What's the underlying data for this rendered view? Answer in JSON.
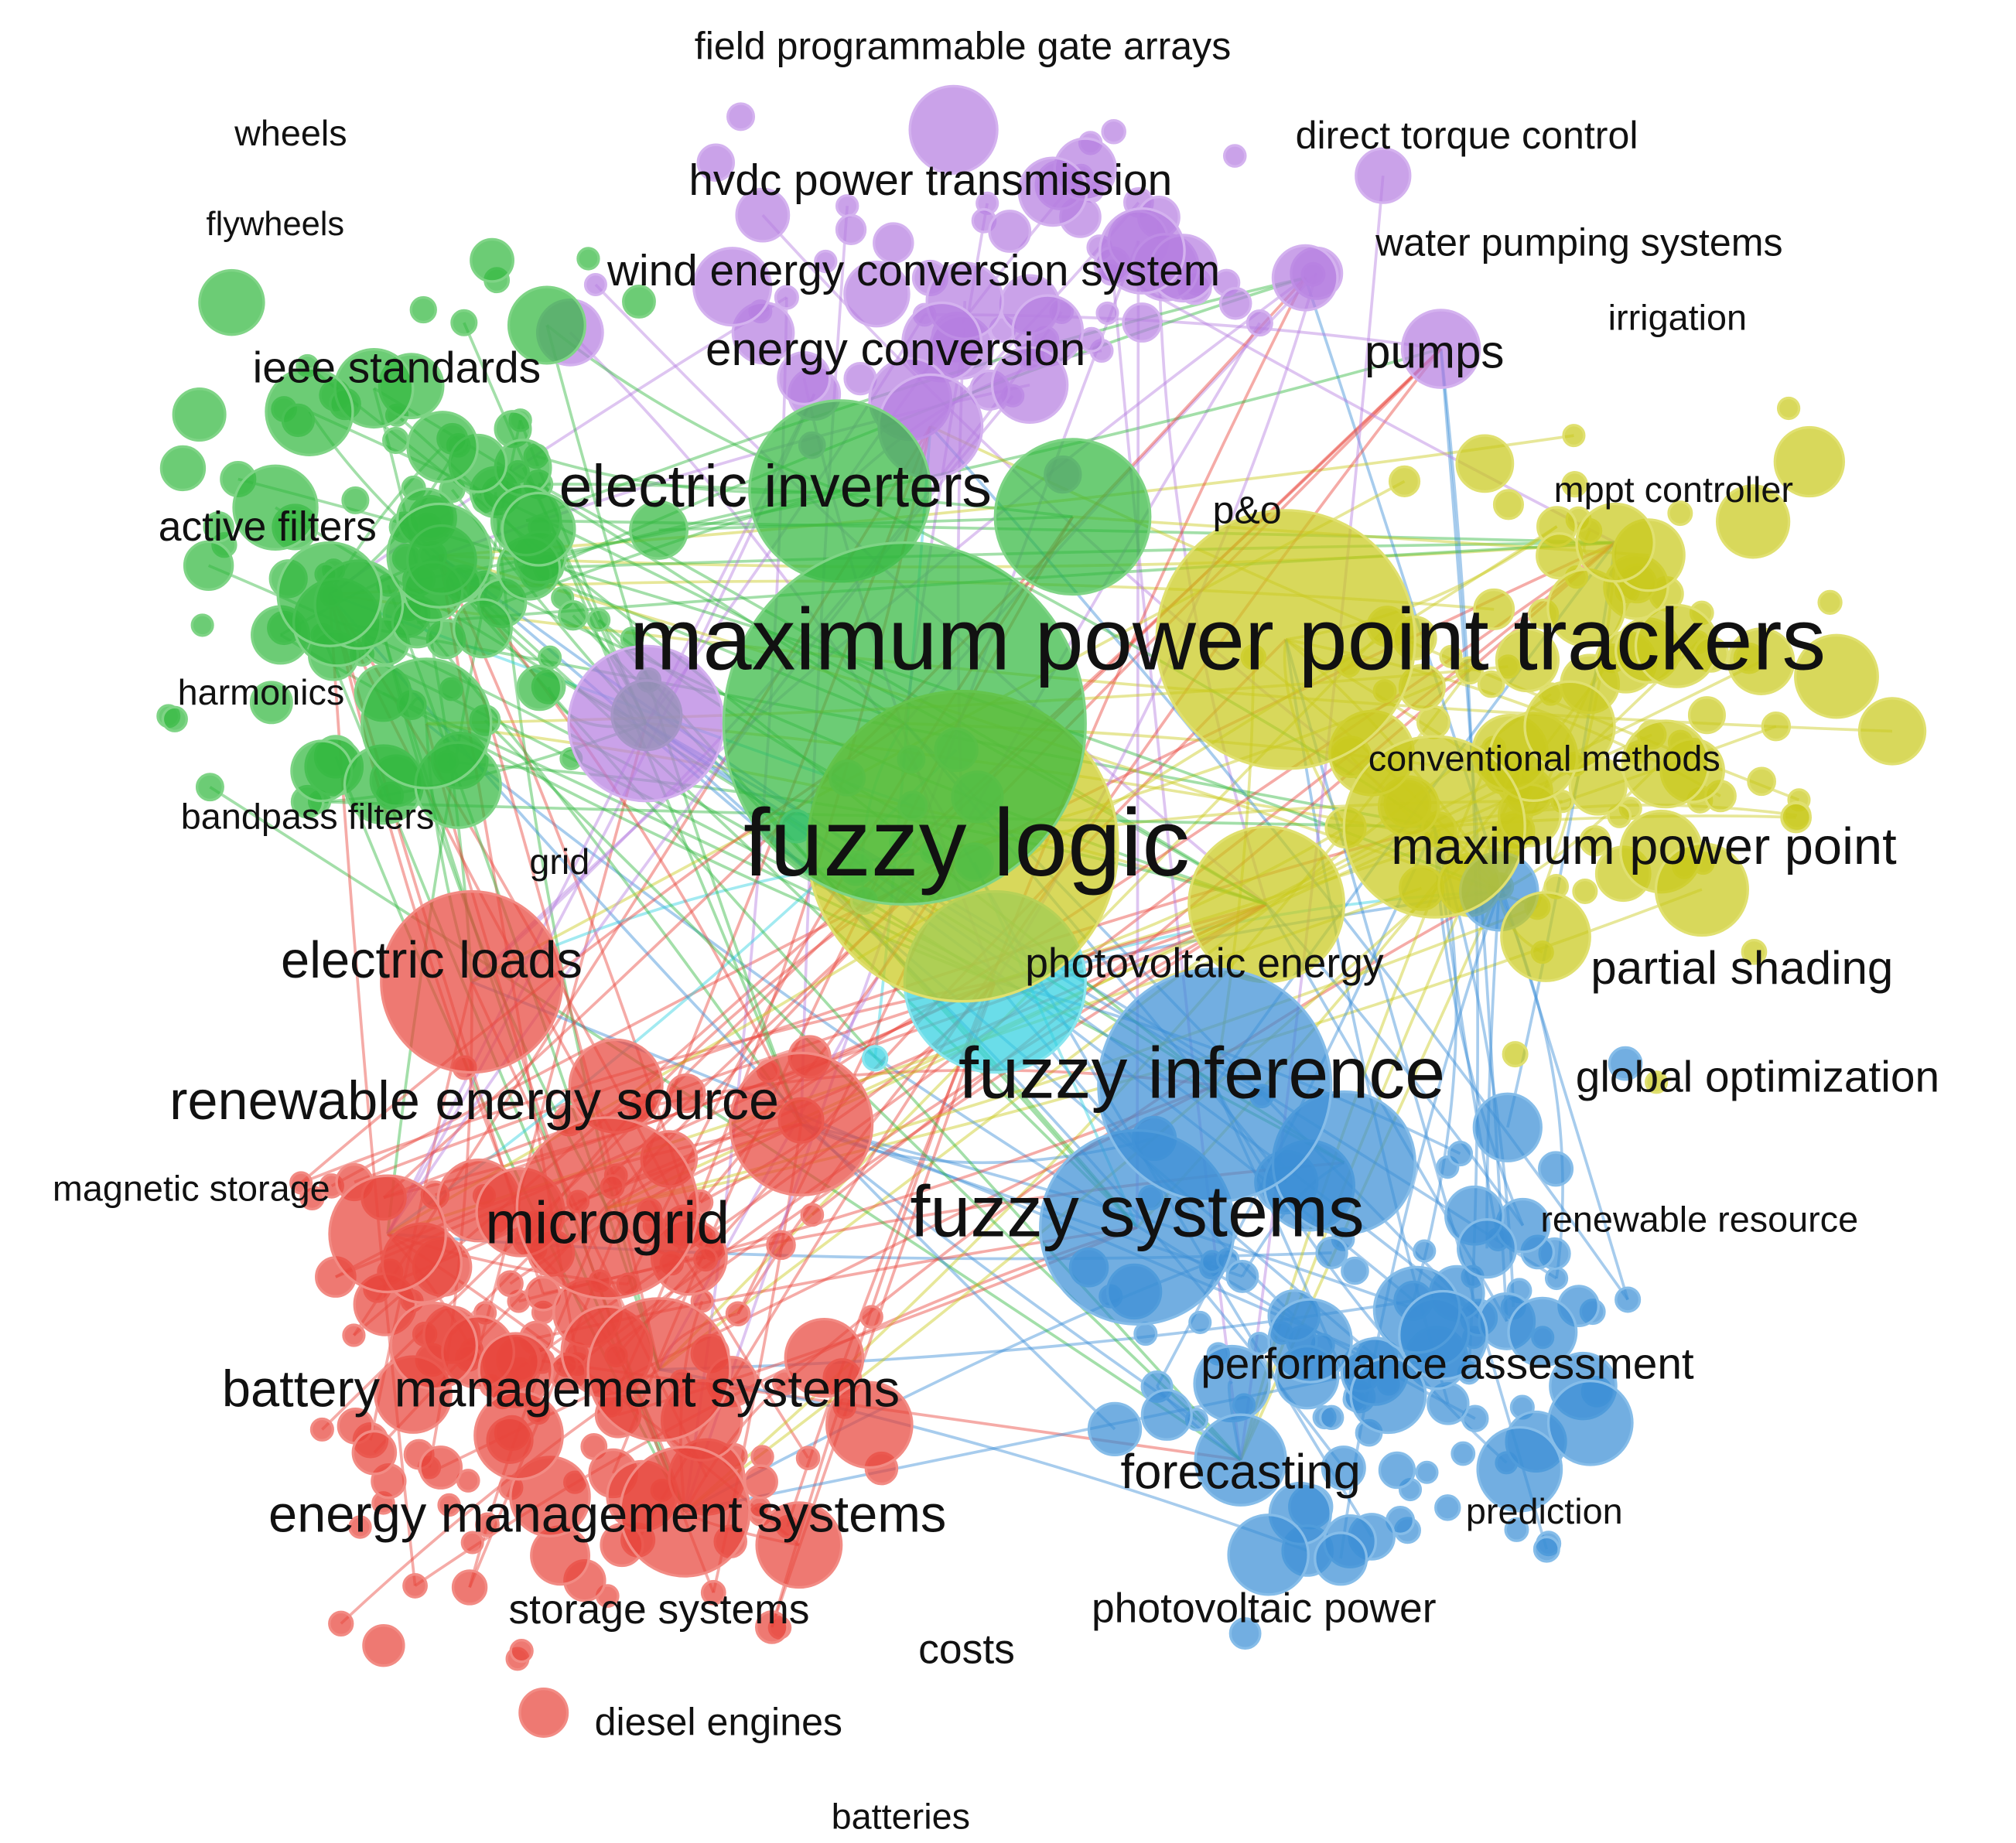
{
  "nodes": [
    {
      "label": "field programmable gate arrays"
    },
    {
      "label": "wheels"
    },
    {
      "label": "direct torque control"
    },
    {
      "label": "flywheels"
    },
    {
      "label": "hvdc power transmission"
    },
    {
      "label": "water pumping systems"
    },
    {
      "label": "wind energy conversion system"
    },
    {
      "label": "irrigation"
    },
    {
      "label": "ieee standards"
    },
    {
      "label": "energy conversion"
    },
    {
      "label": "pumps"
    },
    {
      "label": "electric inverters"
    },
    {
      "label": "p&o"
    },
    {
      "label": "mppt controller"
    },
    {
      "label": "active filters"
    },
    {
      "label": "maximum power point trackers"
    },
    {
      "label": "harmonics"
    },
    {
      "label": "conventional methods"
    },
    {
      "label": "bandpass filters"
    },
    {
      "label": "fuzzy logic"
    },
    {
      "label": "maximum power point"
    },
    {
      "label": "grid"
    },
    {
      "label": "electric loads"
    },
    {
      "label": "photovoltaic energy"
    },
    {
      "label": "partial shading"
    },
    {
      "label": "fuzzy inference"
    },
    {
      "label": "global optimization"
    },
    {
      "label": "renewable energy source"
    },
    {
      "label": "magnetic storage"
    },
    {
      "label": "microgrid"
    },
    {
      "label": "fuzzy systems"
    },
    {
      "label": "renewable resource"
    },
    {
      "label": "performance assessment"
    },
    {
      "label": "battery management systems"
    },
    {
      "label": "forecasting"
    },
    {
      "label": "prediction"
    },
    {
      "label": "energy management systems"
    },
    {
      "label": "storage systems"
    },
    {
      "label": "photovoltaic power"
    },
    {
      "label": "costs"
    },
    {
      "label": "diesel engines"
    },
    {
      "label": "batteries"
    }
  ]
}
